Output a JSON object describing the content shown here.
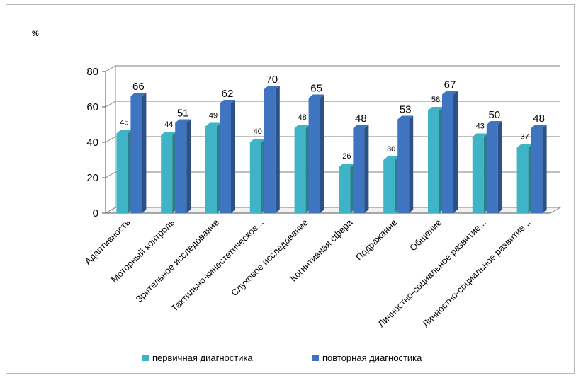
{
  "chart_data": {
    "type": "bar",
    "ylabel": "%",
    "ylim": [
      0,
      80
    ],
    "yticks": [
      "0",
      "20",
      "40",
      "60",
      "80"
    ],
    "grid": true,
    "legend_position": "bottom",
    "categories": [
      "Адаптивность",
      "Моторный контроль",
      "Зрительное исследование",
      "Тактильно-кинестетическое...",
      "Слуховое исследование",
      "Когнитивная сфера",
      "Подражание",
      "Общение",
      "Личностно-социальное развитие...",
      "Личностно-социальное развитие..."
    ],
    "series": [
      {
        "name": "первичная диагностика",
        "color": "#3fb4c6",
        "values": [
          45,
          44,
          49,
          40,
          48,
          26,
          30,
          58,
          43,
          37
        ]
      },
      {
        "name": "повторная диагностика",
        "color": "#3f74c0",
        "values": [
          66,
          51,
          62,
          70,
          65,
          48,
          53,
          67,
          50,
          48
        ]
      }
    ]
  }
}
